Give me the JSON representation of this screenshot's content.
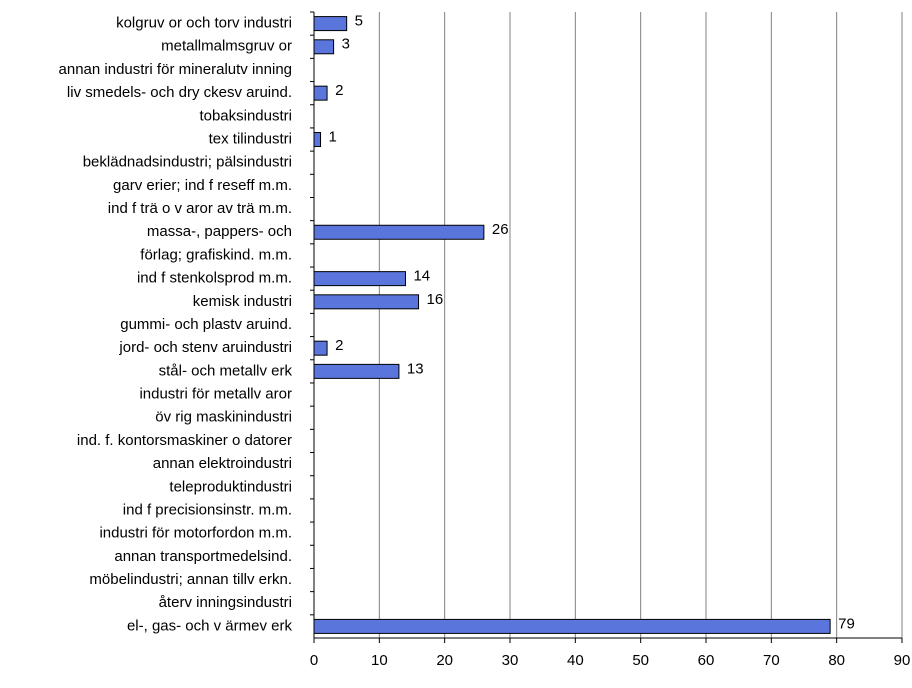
{
  "chart_data": {
    "type": "barh",
    "categories": [
      "kolgruv or och torv industri",
      "metallmalmsgruv or",
      "annan industri för mineralutv inning",
      "liv smedels- och dry ckesv aruind.",
      "tobaksindustri",
      "tex tilindustri",
      "beklädnadsindustri; pälsindustri",
      "garv erier; ind f reseff m.m.",
      "ind f trä o v aror av trä m.m.",
      "massa-, pappers- och",
      "förlag; grafiskind. m.m.",
      "ind f stenkolsprod m.m.",
      "kemisk industri",
      "gummi- och plastv aruind.",
      "jord- och stenv aruindustri",
      "stål- och metallv erk",
      "industri för metallv aror",
      "öv rig maskinindustri",
      "ind. f. kontorsmaskiner o datorer",
      "annan elektroindustri",
      "teleproduktindustri",
      "ind f precisionsinstr. m.m.",
      "industri för motorfordon m.m.",
      "annan transportmedelsind.",
      "möbelindustri; annan tillv erkn.",
      "återv inningsindustri",
      "el-, gas- och v ärmev erk"
    ],
    "values": [
      5,
      3,
      null,
      2,
      null,
      1,
      null,
      null,
      null,
      26,
      null,
      14,
      16,
      null,
      2,
      13,
      null,
      null,
      null,
      null,
      null,
      null,
      null,
      null,
      null,
      null,
      79
    ],
    "color": "#5a76dc",
    "xlim": [
      0,
      90
    ],
    "xticks": [
      0,
      10,
      20,
      30,
      40,
      50,
      60,
      70,
      80,
      90
    ],
    "grid": true
  }
}
